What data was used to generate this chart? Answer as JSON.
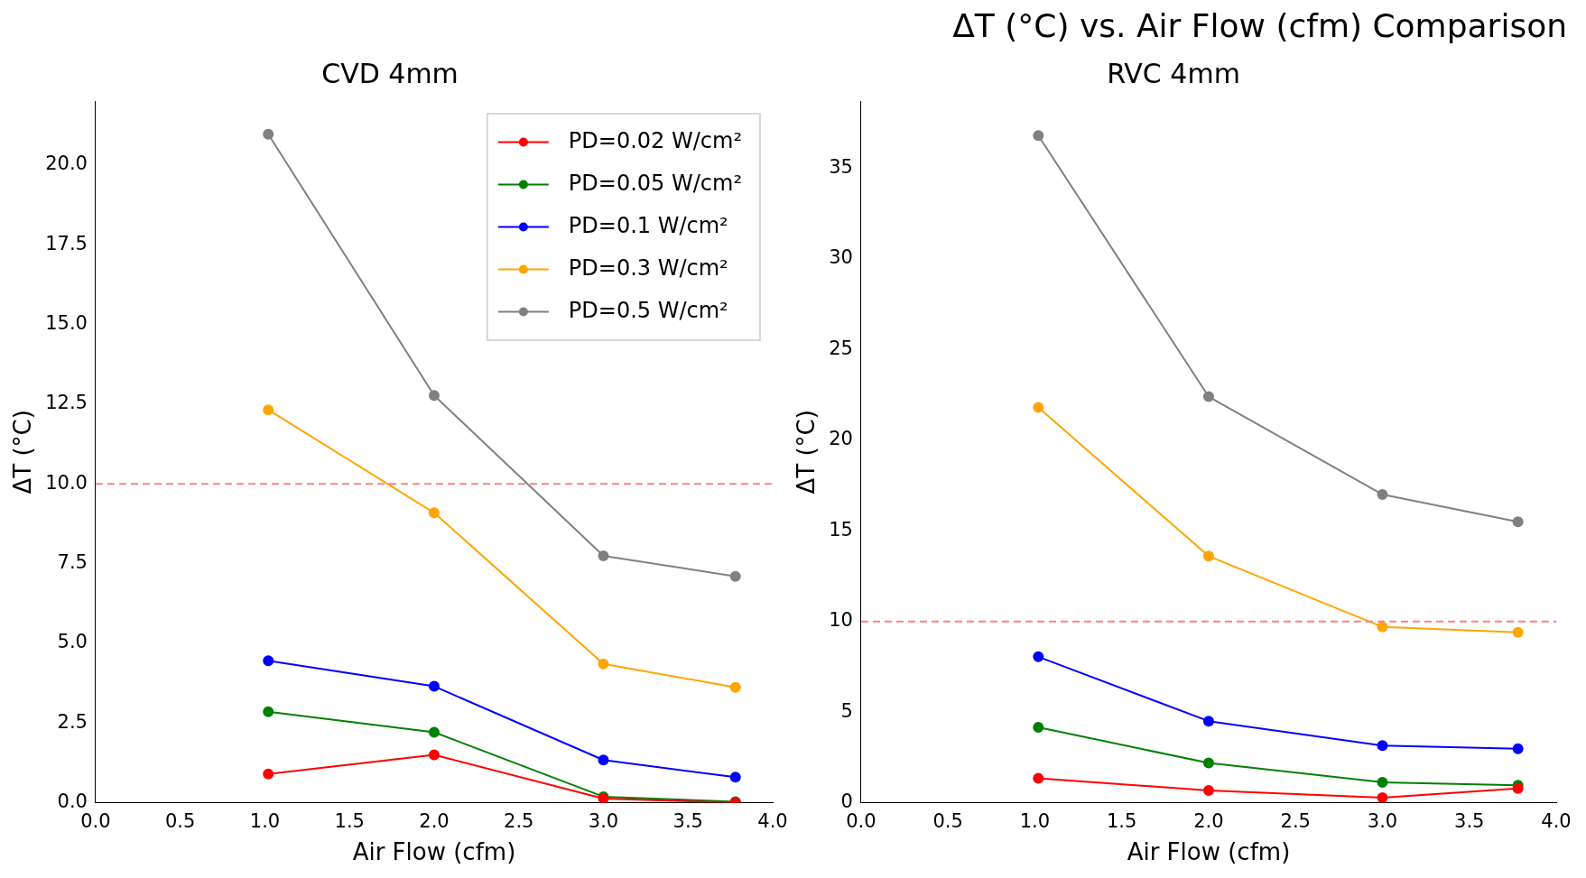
{
  "chart_data": [
    {
      "type": "line",
      "title": "CVD 4mm",
      "xlabel": "Air Flow (cfm)",
      "ylabel": "ΔT (°C)",
      "x": [
        1.02,
        2.0,
        3.0,
        3.78
      ],
      "series": [
        {
          "name": "PD=0.02 W/cm²",
          "color": "#ff0000",
          "values": [
            0.9,
            1.5,
            0.13,
            0.0
          ]
        },
        {
          "name": "PD=0.05 W/cm²",
          "color": "#008000",
          "values": [
            2.85,
            2.21,
            0.19,
            0.03
          ]
        },
        {
          "name": "PD=0.1 W/cm²",
          "color": "#0000ff",
          "values": [
            4.45,
            3.65,
            1.34,
            0.8
          ]
        },
        {
          "name": "PD=0.3 W/cm²",
          "color": "#ffa500",
          "values": [
            12.32,
            9.09,
            4.35,
            3.62
          ]
        },
        {
          "name": "PD=0.5 W/cm²",
          "color": "#808080",
          "values": [
            20.96,
            12.77,
            7.74,
            7.1
          ]
        }
      ],
      "xlim": [
        0,
        4
      ],
      "xticks": [
        {
          "value": 0,
          "label": "0.0"
        },
        0.5,
        {
          "value": 1,
          "label": "1.0"
        },
        1.5,
        {
          "value": 2,
          "label": "2.0"
        },
        2.5,
        {
          "value": 3,
          "label": "3.0"
        },
        3.5,
        {
          "value": 4,
          "label": "4.0"
        }
      ],
      "ylim": [
        0,
        22
      ],
      "yticks": [
        {
          "value": 0,
          "label": "0.0"
        },
        2.5,
        {
          "value": 5,
          "label": "5.0"
        },
        7.5,
        {
          "value": 10,
          "label": "10.0"
        },
        12.5,
        {
          "value": 15,
          "label": "15.0"
        },
        17.5,
        {
          "value": 20,
          "label": "20.0"
        }
      ],
      "ref_lines": [
        {
          "axis": "y",
          "value": 10,
          "color": "#ff8080",
          "line_style": "dashed"
        }
      ],
      "marker": "circle",
      "line_style": "solid",
      "legend": "top right",
      "grid": false
    },
    {
      "type": "line",
      "title": "RVC 4mm",
      "xlabel": "Air Flow (cfm)",
      "ylabel": "ΔT (°C)",
      "x": [
        1.02,
        2.0,
        3.0,
        3.78
      ],
      "annotations": [
        "ΔT (°C) vs. Air Flow (cfm) Comparison"
      ],
      "series": [
        {
          "color": "#ff0000",
          "values": [
            1.35,
            0.68,
            0.28,
            0.79
          ]
        },
        {
          "color": "#008000",
          "values": [
            4.16,
            2.19,
            1.13,
            0.96
          ]
        },
        {
          "color": "#0000ff",
          "values": [
            8.05,
            4.5,
            3.15,
            2.98
          ]
        },
        {
          "color": "#ffa500",
          "values": [
            21.8,
            13.6,
            9.7,
            9.4
          ]
        },
        {
          "color": "#808080",
          "values": [
            36.8,
            22.4,
            17.0,
            15.5
          ]
        }
      ],
      "xlim": [
        0,
        4
      ],
      "xticks": [
        {
          "value": 0,
          "label": "0.0"
        },
        0.5,
        {
          "value": 1,
          "label": "1.0"
        },
        1.5,
        {
          "value": 2,
          "label": "2.0"
        },
        2.5,
        {
          "value": 3,
          "label": "3.0"
        },
        3.5,
        {
          "value": 4,
          "label": "4.0"
        }
      ],
      "ylim": [
        0,
        38.7
      ],
      "yticks": [
        0,
        5,
        10,
        15,
        20,
        25,
        30,
        35
      ],
      "ref_lines": [
        {
          "axis": "y",
          "value": 10,
          "color": "#ff8080",
          "line_style": "dashed"
        }
      ],
      "marker": "circle",
      "line_style": "solid",
      "grid": false
    }
  ]
}
